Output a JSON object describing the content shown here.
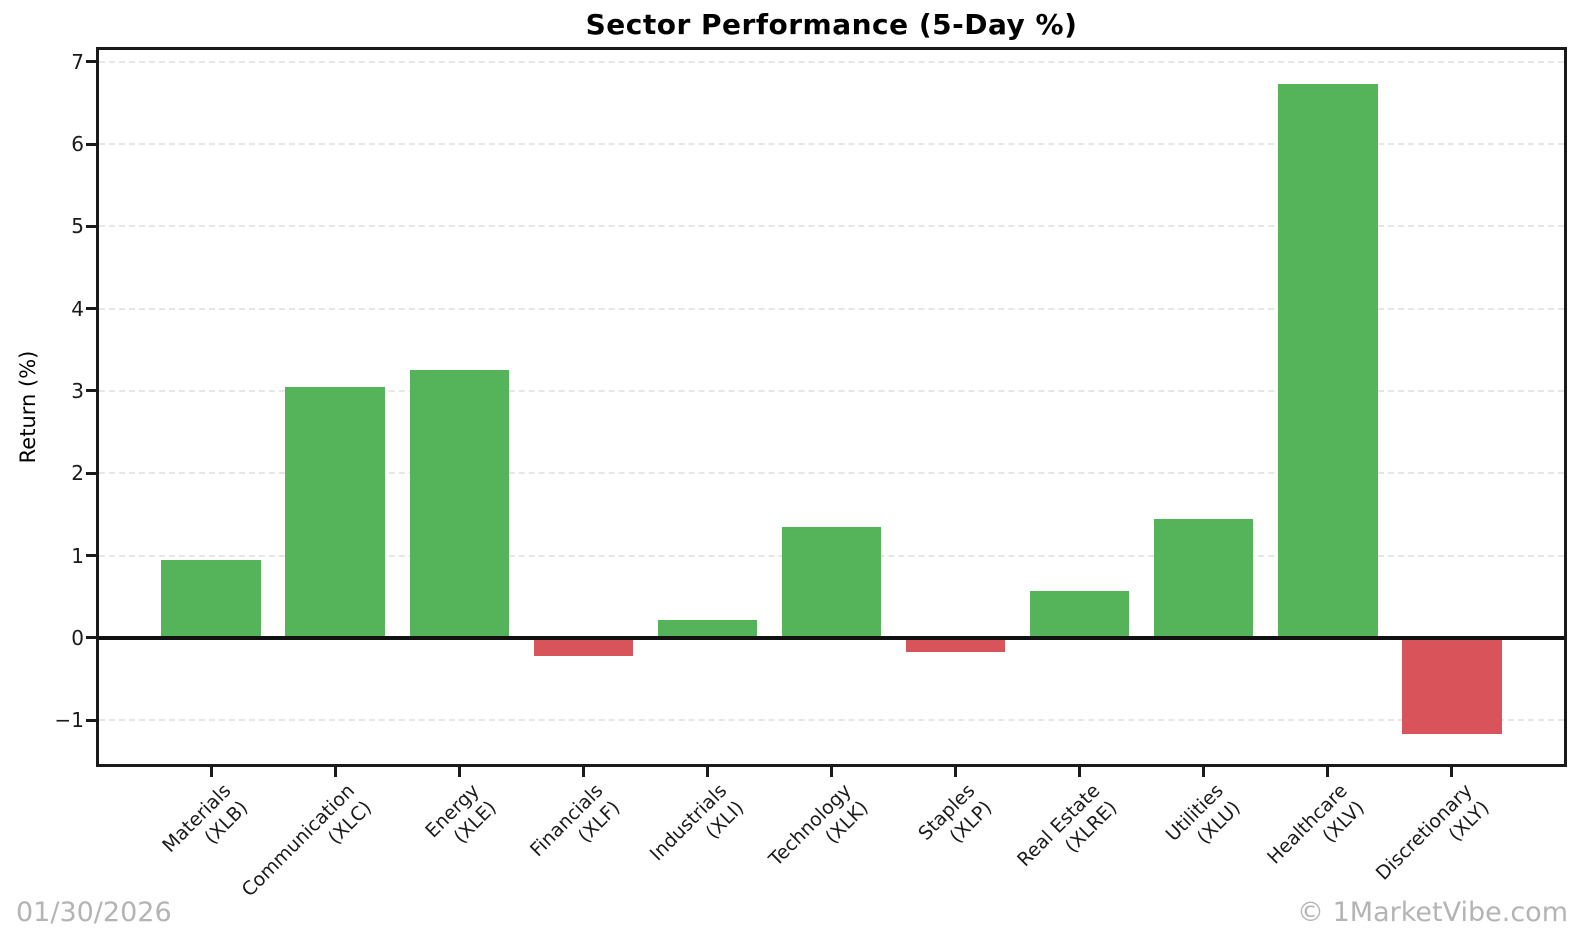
{
  "page": {
    "footer_date": "01/30/2026",
    "footer_watermark": "© 1MarketVibe.com"
  },
  "colors": {
    "positive_bar": "#55b35a",
    "negative_bar": "#d8545a",
    "grid": "#e6e6e6",
    "axis": "#1a1a1a",
    "footer_text": "#b4b4b4"
  },
  "chart_data": {
    "type": "bar",
    "title": "Sector Performance (5-Day %)",
    "xlabel": "",
    "ylabel": "Return (%)",
    "categories": [
      {
        "name": "Materials",
        "ticker": "(XLB)"
      },
      {
        "name": "Communication",
        "ticker": "(XLC)"
      },
      {
        "name": "Energy",
        "ticker": "(XLE)"
      },
      {
        "name": "Financials",
        "ticker": "(XLF)"
      },
      {
        "name": "Industrials",
        "ticker": "(XLI)"
      },
      {
        "name": "Technology",
        "ticker": "(XLK)"
      },
      {
        "name": "Staples",
        "ticker": "(XLP)"
      },
      {
        "name": "Real Estate",
        "ticker": "(XLRE)"
      },
      {
        "name": "Utilities",
        "ticker": "(XLU)"
      },
      {
        "name": "Healthcare",
        "ticker": "(XLV)"
      },
      {
        "name": "Discretionary",
        "ticker": "(XLY)"
      }
    ],
    "values": [
      0.95,
      3.05,
      3.25,
      -0.22,
      0.22,
      1.35,
      -0.17,
      0.57,
      1.44,
      6.73,
      -1.17
    ],
    "yticks": [
      -1,
      0,
      1,
      2,
      3,
      4,
      5,
      6,
      7
    ],
    "ylim": [
      -1.57,
      7.18
    ],
    "grid": "horizontal dashed",
    "legend": "none",
    "bar_color_rule": "green when value >= 0, red when value < 0"
  }
}
